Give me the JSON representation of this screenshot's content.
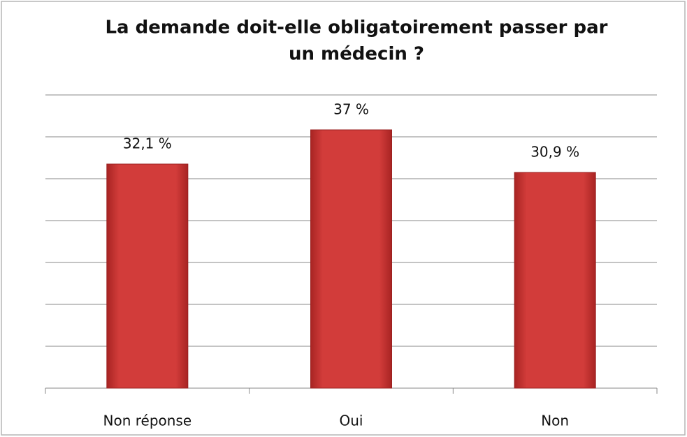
{
  "chart_data": {
    "type": "bar",
    "title": [
      "La demande doit-elle obligatoirement passer par",
      "un médecin ?"
    ],
    "categories": [
      "Non réponse",
      "Oui",
      "Non"
    ],
    "values": [
      32.1,
      37,
      30.9
    ],
    "value_labels": [
      "32,1 %",
      "37 %",
      "30,9 %"
    ],
    "color": "#d23c3a",
    "ylim": [
      0,
      42
    ],
    "yticks": [
      0,
      6,
      12,
      18,
      24,
      30,
      36,
      42
    ],
    "grid": true
  }
}
